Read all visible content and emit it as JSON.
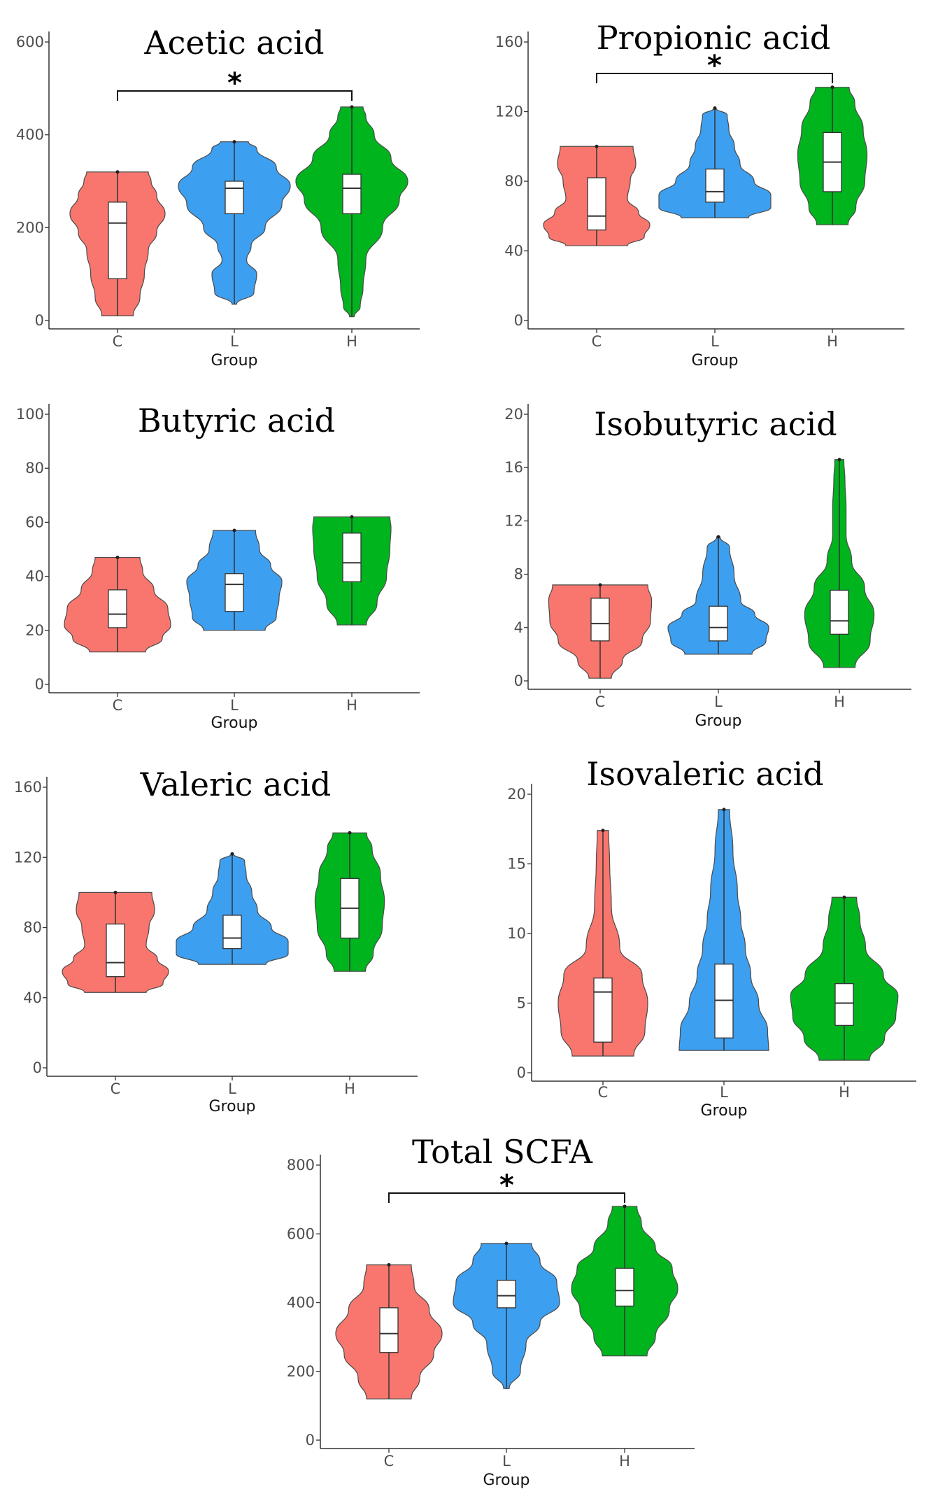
{
  "chart_data": [
    {
      "type": "violin",
      "title": "Acetic acid",
      "xlabel": "Group",
      "ylabel": "",
      "categories": [
        "C",
        "L",
        "H"
      ],
      "ylim": [
        0,
        600
      ],
      "yticks": [
        0,
        200,
        400,
        600
      ],
      "significance": {
        "from": "C",
        "to": "H",
        "label": "*"
      },
      "series": [
        {
          "name": "C",
          "color": "#f8766d",
          "min": 10,
          "q1": 90,
          "median": 210,
          "q3": 255,
          "max": 320,
          "profile": [
            [
              10,
              0.28
            ],
            [
              50,
              0.4
            ],
            [
              100,
              0.48
            ],
            [
              150,
              0.55
            ],
            [
              190,
              0.7
            ],
            [
              230,
              0.85
            ],
            [
              270,
              0.7
            ],
            [
              300,
              0.6
            ],
            [
              320,
              0.55
            ]
          ]
        },
        {
          "name": "L",
          "color": "#3d9ff0",
          "min": 35,
          "q1": 230,
          "median": 285,
          "q3": 300,
          "max": 385,
          "profile": [
            [
              35,
              0.04
            ],
            [
              60,
              0.35
            ],
            [
              100,
              0.4
            ],
            [
              130,
              0.22
            ],
            [
              160,
              0.3
            ],
            [
              200,
              0.55
            ],
            [
              250,
              0.85
            ],
            [
              290,
              1.0
            ],
            [
              330,
              0.75
            ],
            [
              370,
              0.4
            ],
            [
              385,
              0.25
            ]
          ]
        },
        {
          "name": "H",
          "color": "#00b41e",
          "min": 8,
          "q1": 230,
          "median": 285,
          "q3": 315,
          "max": 460,
          "profile": [
            [
              8,
              0.04
            ],
            [
              30,
              0.15
            ],
            [
              70,
              0.2
            ],
            [
              130,
              0.25
            ],
            [
              200,
              0.55
            ],
            [
              260,
              0.85
            ],
            [
              300,
              1.0
            ],
            [
              350,
              0.7
            ],
            [
              400,
              0.4
            ],
            [
              440,
              0.25
            ],
            [
              460,
              0.2
            ]
          ]
        }
      ]
    },
    {
      "type": "violin",
      "title": "Propionic acid",
      "xlabel": "Group",
      "ylabel": "",
      "categories": [
        "C",
        "L",
        "H"
      ],
      "ylim": [
        0,
        160
      ],
      "yticks": [
        0,
        40,
        80,
        120,
        160
      ],
      "significance": {
        "from": "C",
        "to": "H",
        "label": "*"
      },
      "series": [
        {
          "name": "C",
          "color": "#f8766d",
          "min": 43,
          "q1": 52,
          "median": 60,
          "q3": 82,
          "max": 100,
          "profile": [
            [
              43,
              0.55
            ],
            [
              48,
              0.85
            ],
            [
              55,
              0.95
            ],
            [
              62,
              0.75
            ],
            [
              70,
              0.55
            ],
            [
              80,
              0.6
            ],
            [
              90,
              0.7
            ],
            [
              100,
              0.65
            ]
          ]
        },
        {
          "name": "L",
          "color": "#3d9ff0",
          "min": 59,
          "q1": 68,
          "median": 74,
          "q3": 87,
          "max": 122,
          "profile": [
            [
              59,
              0.6
            ],
            [
              65,
              1.0
            ],
            [
              72,
              1.0
            ],
            [
              80,
              0.7
            ],
            [
              90,
              0.45
            ],
            [
              100,
              0.35
            ],
            [
              110,
              0.25
            ],
            [
              118,
              0.22
            ],
            [
              122,
              0.02
            ]
          ]
        },
        {
          "name": "H",
          "color": "#00b41e",
          "min": 55,
          "q1": 74,
          "median": 91,
          "q3": 108,
          "max": 134,
          "profile": [
            [
              55,
              0.28
            ],
            [
              65,
              0.42
            ],
            [
              80,
              0.58
            ],
            [
              95,
              0.62
            ],
            [
              110,
              0.55
            ],
            [
              125,
              0.4
            ],
            [
              134,
              0.3
            ]
          ]
        }
      ]
    },
    {
      "type": "violin",
      "title": "Butyric acid",
      "xlabel": "Group",
      "ylabel": "",
      "categories": [
        "C",
        "L",
        "H"
      ],
      "ylim": [
        0,
        100
      ],
      "yticks": [
        0,
        20,
        40,
        60,
        80,
        100
      ],
      "significance": null,
      "series": [
        {
          "name": "C",
          "color": "#f8766d",
          "min": 12,
          "q1": 21,
          "median": 26,
          "q3": 35,
          "max": 47,
          "profile": [
            [
              12,
              0.5
            ],
            [
              17,
              0.8
            ],
            [
              22,
              0.95
            ],
            [
              28,
              0.9
            ],
            [
              35,
              0.65
            ],
            [
              42,
              0.45
            ],
            [
              47,
              0.4
            ]
          ]
        },
        {
          "name": "L",
          "color": "#3d9ff0",
          "min": 20,
          "q1": 27,
          "median": 37,
          "q3": 41,
          "max": 57,
          "profile": [
            [
              20,
              0.55
            ],
            [
              25,
              0.75
            ],
            [
              32,
              0.8
            ],
            [
              38,
              0.85
            ],
            [
              44,
              0.65
            ],
            [
              50,
              0.45
            ],
            [
              57,
              0.38
            ]
          ]
        },
        {
          "name": "H",
          "color": "#00b41e",
          "min": 22,
          "q1": 38,
          "median": 45,
          "q3": 56,
          "max": 62,
          "profile": [
            [
              22,
              0.26
            ],
            [
              30,
              0.45
            ],
            [
              40,
              0.62
            ],
            [
              50,
              0.68
            ],
            [
              58,
              0.7
            ],
            [
              62,
              0.68
            ]
          ]
        }
      ]
    },
    {
      "type": "violin",
      "title": "Isobutyric acid",
      "xlabel": "Group",
      "ylabel": "",
      "categories": [
        "C",
        "L",
        "H"
      ],
      "ylim": [
        0,
        20
      ],
      "yticks": [
        0,
        4,
        8,
        12,
        16,
        20
      ],
      "significance": null,
      "series": [
        {
          "name": "C",
          "color": "#f8766d",
          "min": 0.2,
          "q1": 3,
          "median": 4.3,
          "q3": 6.2,
          "max": 7.2,
          "profile": [
            [
              0.2,
              0.2
            ],
            [
              1.5,
              0.4
            ],
            [
              3,
              0.75
            ],
            [
              4.5,
              0.9
            ],
            [
              6,
              0.92
            ],
            [
              7.2,
              0.85
            ]
          ]
        },
        {
          "name": "L",
          "color": "#3d9ff0",
          "min": 2,
          "q1": 3,
          "median": 4,
          "q3": 5.6,
          "max": 10.8,
          "profile": [
            [
              2,
              0.6
            ],
            [
              3,
              0.85
            ],
            [
              4,
              0.9
            ],
            [
              5,
              0.65
            ],
            [
              6,
              0.4
            ],
            [
              8,
              0.28
            ],
            [
              10,
              0.2
            ],
            [
              10.8,
              0.03
            ]
          ]
        },
        {
          "name": "H",
          "color": "#00b41e",
          "min": 1,
          "q1": 3.5,
          "median": 4.5,
          "q3": 6.8,
          "max": 16.6,
          "profile": [
            [
              1,
              0.28
            ],
            [
              3,
              0.55
            ],
            [
              5,
              0.62
            ],
            [
              7,
              0.45
            ],
            [
              9,
              0.22
            ],
            [
              11,
              0.12
            ],
            [
              13,
              0.12
            ],
            [
              15,
              0.1
            ],
            [
              16.6,
              0.08
            ]
          ]
        }
      ]
    },
    {
      "type": "violin",
      "title": "Valeric acid",
      "xlabel": "Group",
      "ylabel": "",
      "categories": [
        "C",
        "L",
        "H"
      ],
      "ylim": [
        0,
        160
      ],
      "yticks": [
        0,
        40,
        80,
        120,
        160
      ],
      "significance": null,
      "series": [
        {
          "name": "C",
          "color": "#f8766d",
          "min": 43,
          "q1": 52,
          "median": 60,
          "q3": 82,
          "max": 100,
          "profile": [
            [
              43,
              0.55
            ],
            [
              48,
              0.85
            ],
            [
              55,
              0.95
            ],
            [
              62,
              0.75
            ],
            [
              70,
              0.55
            ],
            [
              80,
              0.6
            ],
            [
              90,
              0.7
            ],
            [
              100,
              0.65
            ]
          ]
        },
        {
          "name": "L",
          "color": "#3d9ff0",
          "min": 59,
          "q1": 68,
          "median": 74,
          "q3": 87,
          "max": 122,
          "profile": [
            [
              59,
              0.6
            ],
            [
              65,
              1.0
            ],
            [
              72,
              1.0
            ],
            [
              80,
              0.7
            ],
            [
              90,
              0.45
            ],
            [
              100,
              0.35
            ],
            [
              110,
              0.25
            ],
            [
              118,
              0.22
            ],
            [
              122,
              0.02
            ]
          ]
        },
        {
          "name": "H",
          "color": "#00b41e",
          "min": 55,
          "q1": 74,
          "median": 91,
          "q3": 108,
          "max": 134,
          "profile": [
            [
              55,
              0.28
            ],
            [
              65,
              0.42
            ],
            [
              80,
              0.58
            ],
            [
              95,
              0.62
            ],
            [
              110,
              0.55
            ],
            [
              125,
              0.4
            ],
            [
              134,
              0.3
            ]
          ]
        }
      ]
    },
    {
      "type": "violin",
      "title": "Isovaleric acid",
      "xlabel": "Group",
      "ylabel": "",
      "categories": [
        "C",
        "L",
        "H"
      ],
      "ylim": [
        0,
        20
      ],
      "yticks": [
        0,
        5,
        10,
        15,
        20
      ],
      "significance": null,
      "series": [
        {
          "name": "C",
          "color": "#f8766d",
          "min": 1.2,
          "q1": 2.2,
          "median": 5.8,
          "q3": 6.8,
          "max": 17.4,
          "profile": [
            [
              1.2,
              0.55
            ],
            [
              3,
              0.75
            ],
            [
              5,
              0.8
            ],
            [
              7,
              0.7
            ],
            [
              9,
              0.3
            ],
            [
              12,
              0.15
            ],
            [
              15,
              0.12
            ],
            [
              17.4,
              0.1
            ]
          ]
        },
        {
          "name": "L",
          "color": "#3d9ff0",
          "min": 1.6,
          "q1": 2.5,
          "median": 5.2,
          "q3": 7.8,
          "max": 18.9,
          "profile": [
            [
              1.6,
              0.8
            ],
            [
              3,
              0.78
            ],
            [
              5,
              0.62
            ],
            [
              7,
              0.48
            ],
            [
              9,
              0.38
            ],
            [
              11,
              0.3
            ],
            [
              13,
              0.24
            ],
            [
              16,
              0.16
            ],
            [
              18.9,
              0.1
            ]
          ]
        },
        {
          "name": "H",
          "color": "#00b41e",
          "min": 0.9,
          "q1": 3.4,
          "median": 5,
          "q3": 6.4,
          "max": 12.6,
          "profile": [
            [
              0.9,
              0.45
            ],
            [
              2.5,
              0.72
            ],
            [
              4,
              0.92
            ],
            [
              5.5,
              0.96
            ],
            [
              7,
              0.7
            ],
            [
              9,
              0.38
            ],
            [
              11,
              0.28
            ],
            [
              12.6,
              0.22
            ]
          ]
        }
      ]
    },
    {
      "type": "violin",
      "title": "Total SCFA",
      "xlabel": "Group",
      "ylabel": "",
      "categories": [
        "C",
        "L",
        "H"
      ],
      "ylim": [
        0,
        800
      ],
      "yticks": [
        0,
        200,
        400,
        600,
        800
      ],
      "significance": {
        "from": "C",
        "to": "H",
        "label": "*"
      },
      "series": [
        {
          "name": "C",
          "color": "#f8766d",
          "min": 120,
          "q1": 255,
          "median": 310,
          "q3": 385,
          "max": 510,
          "profile": [
            [
              120,
              0.4
            ],
            [
              180,
              0.55
            ],
            [
              250,
              0.8
            ],
            [
              310,
              0.95
            ],
            [
              380,
              0.72
            ],
            [
              450,
              0.45
            ],
            [
              510,
              0.4
            ]
          ]
        },
        {
          "name": "L",
          "color": "#3d9ff0",
          "min": 150,
          "q1": 385,
          "median": 420,
          "q3": 465,
          "max": 572,
          "profile": [
            [
              150,
              0.05
            ],
            [
              200,
              0.25
            ],
            [
              280,
              0.35
            ],
            [
              340,
              0.6
            ],
            [
              400,
              0.95
            ],
            [
              460,
              0.9
            ],
            [
              520,
              0.6
            ],
            [
              572,
              0.45
            ]
          ]
        },
        {
          "name": "H",
          "color": "#00b41e",
          "min": 245,
          "q1": 390,
          "median": 435,
          "q3": 500,
          "max": 680,
          "profile": [
            [
              245,
              0.4
            ],
            [
              300,
              0.55
            ],
            [
              380,
              0.8
            ],
            [
              440,
              0.95
            ],
            [
              500,
              0.85
            ],
            [
              560,
              0.55
            ],
            [
              630,
              0.3
            ],
            [
              680,
              0.22
            ]
          ]
        }
      ]
    }
  ]
}
